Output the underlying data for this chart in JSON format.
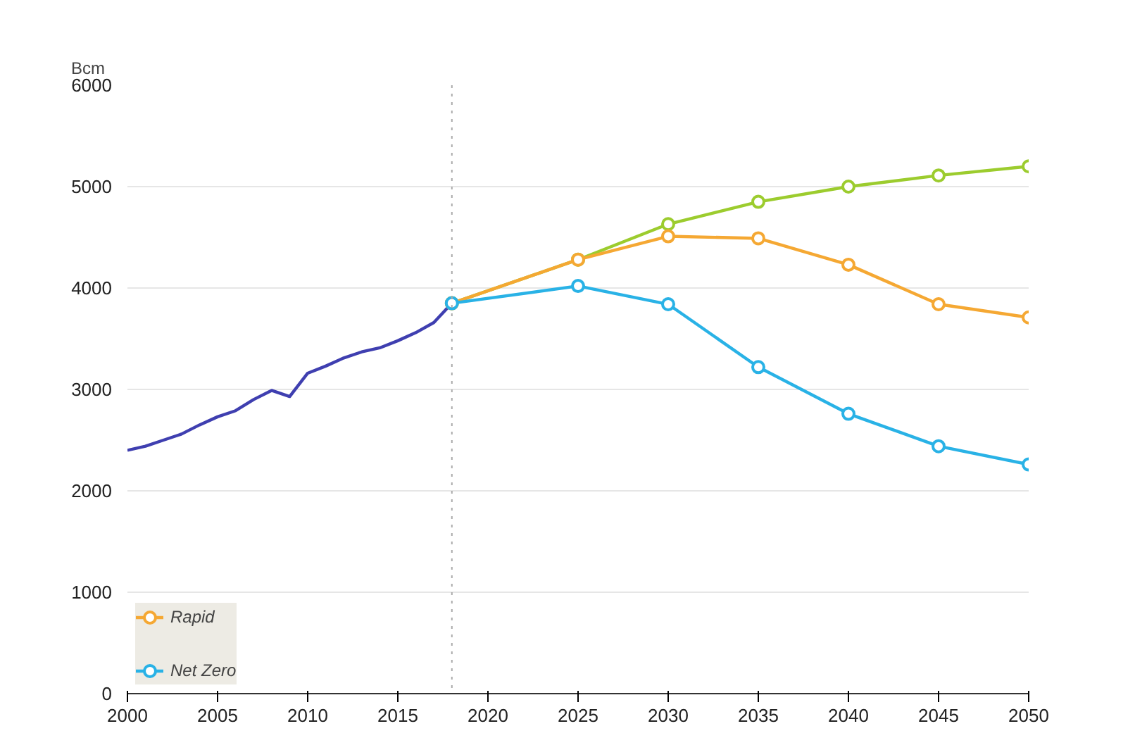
{
  "chart_data": {
    "type": "line",
    "ylabel": "Bcm",
    "xlim": [
      2000,
      2050
    ],
    "ylim": [
      0,
      6000
    ],
    "xticks": [
      2000,
      2005,
      2010,
      2015,
      2020,
      2025,
      2030,
      2035,
      2040,
      2045,
      2050
    ],
    "yticks": [
      0,
      1000,
      2000,
      3000,
      4000,
      5000,
      6000
    ],
    "grid": "y",
    "legend": "bottom left",
    "ref_lines": [
      {
        "axis": "x",
        "value": 2018,
        "color": "#aaaaaa",
        "line_style": "dotted"
      }
    ],
    "series": [
      {
        "color": "#3f3fb0",
        "marker": "none",
        "x": [
          2000,
          2001,
          2002,
          2003,
          2004,
          2005,
          2006,
          2007,
          2008,
          2009,
          2010,
          2011,
          2012,
          2013,
          2014,
          2015,
          2016,
          2017,
          2018
        ],
        "values": [
          2400,
          2440,
          2500,
          2560,
          2650,
          2730,
          2790,
          2900,
          2990,
          2930,
          3160,
          3230,
          3310,
          3370,
          3410,
          3480,
          3560,
          3660,
          3850
        ]
      },
      {
        "color": "#9ccc2e",
        "marker": "circle",
        "x": [
          2018,
          2025,
          2030,
          2035,
          2040,
          2045,
          2050
        ],
        "values": [
          3850,
          4280,
          4630,
          4850,
          5000,
          5110,
          5200
        ]
      },
      {
        "name": "Rapid",
        "color": "#f5a833",
        "marker": "circle",
        "x": [
          2018,
          2025,
          2030,
          2035,
          2040,
          2045,
          2050
        ],
        "values": [
          3850,
          4280,
          4510,
          4490,
          4230,
          3840,
          3710
        ]
      },
      {
        "name": "Net Zero",
        "color": "#29b2e6",
        "marker": "circle",
        "x": [
          2018,
          2025,
          2030,
          2035,
          2040,
          2045,
          2050
        ],
        "values": [
          3850,
          4020,
          3840,
          3220,
          2760,
          2440,
          2260
        ]
      }
    ]
  }
}
